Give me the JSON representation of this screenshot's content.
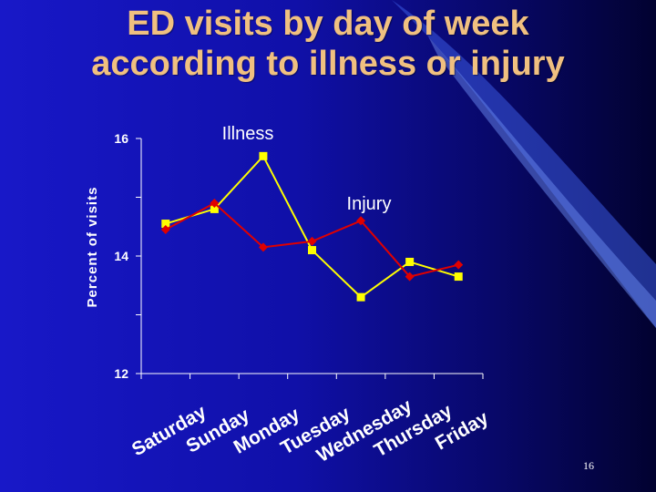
{
  "slide": {
    "title_line1": "ED visits by day of week",
    "title_line2": "according to illness or injury",
    "number": "16"
  },
  "chart_data": {
    "type": "line",
    "ylabel": "Percent of visits",
    "ylim": [
      12,
      16
    ],
    "yticks": [
      "12",
      "14",
      "16"
    ],
    "categories": [
      "Saturday",
      "Sunday",
      "Monday",
      "Tuesday",
      "Wednesday",
      "Thursday",
      "Friday"
    ],
    "series": [
      {
        "name": "Illness",
        "color": "#ffff00",
        "marker": "square",
        "values": [
          14.55,
          14.8,
          15.7,
          14.1,
          13.3,
          13.9,
          13.65
        ]
      },
      {
        "name": "Injury",
        "color": "#e00000",
        "marker": "diamond",
        "values": [
          14.45,
          14.9,
          14.15,
          14.25,
          14.6,
          13.65,
          13.85
        ]
      }
    ],
    "grid": false
  },
  "colors": {
    "background": "#1010a8",
    "title": "#f0c080",
    "axis": "#ffffff",
    "text": "#ffffff"
  }
}
